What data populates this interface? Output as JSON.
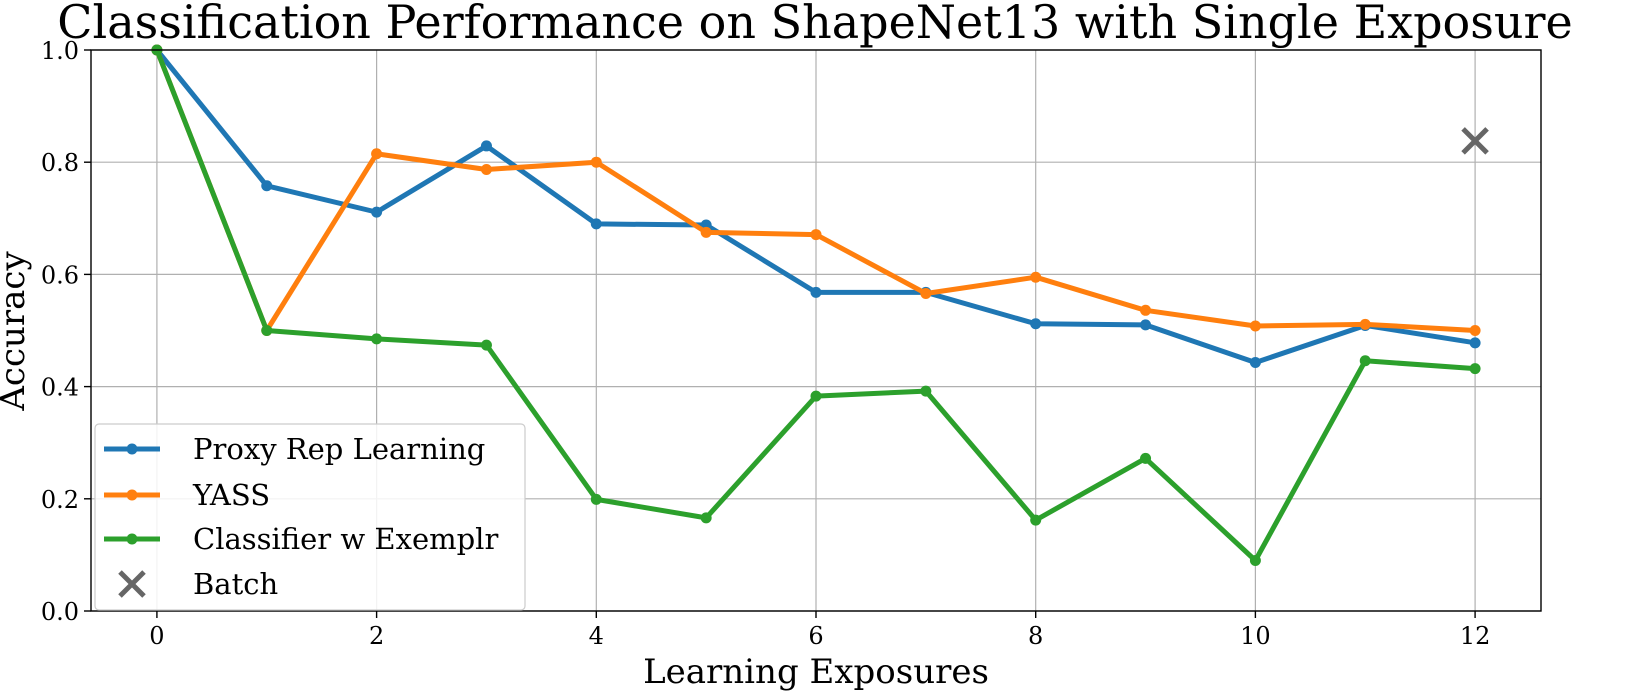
{
  "chart_data": {
    "type": "line",
    "title": "Classification Performance on ShapeNet13 with Single Exposure",
    "xlabel": "Learning Exposures",
    "ylabel": "Accuracy",
    "xlim": [
      -0.6,
      12.6
    ],
    "ylim": [
      0.0,
      1.0
    ],
    "xticks": [
      0,
      2,
      4,
      6,
      8,
      10,
      12
    ],
    "xtick_labels": [
      "0",
      "2",
      "4",
      "6",
      "8",
      "10",
      "12"
    ],
    "yticks": [
      0.0,
      0.2,
      0.4,
      0.6,
      0.8,
      1.0
    ],
    "ytick_labels": [
      "0.0",
      "0.2",
      "0.4",
      "0.6",
      "0.8",
      "1.0"
    ],
    "grid": true,
    "legend_position": "lower-left",
    "x": [
      0,
      1,
      2,
      3,
      4,
      5,
      6,
      7,
      8,
      9,
      10,
      11,
      12
    ],
    "series": [
      {
        "name": "Proxy Rep Learning",
        "color": "#1f77b4",
        "values": [
          1.0,
          0.758,
          0.711,
          0.829,
          0.69,
          0.688,
          0.568,
          0.568,
          0.512,
          0.51,
          0.443,
          0.509,
          0.478
        ]
      },
      {
        "name": "YASS",
        "color": "#ff7f0e",
        "values": [
          1.0,
          0.5,
          0.815,
          0.787,
          0.8,
          0.675,
          0.671,
          0.566,
          0.595,
          0.536,
          0.508,
          0.511,
          0.5
        ]
      },
      {
        "name": "Classifier w Exemplr",
        "color": "#2ca02c",
        "values": [
          1.0,
          0.5,
          0.485,
          0.474,
          0.199,
          0.166,
          0.383,
          0.392,
          0.162,
          0.272,
          0.09,
          0.446,
          0.432
        ]
      }
    ],
    "markers": [
      {
        "name": "Batch",
        "color": "#666666",
        "symbol": "x",
        "x": 12,
        "y": 0.838
      }
    ]
  }
}
